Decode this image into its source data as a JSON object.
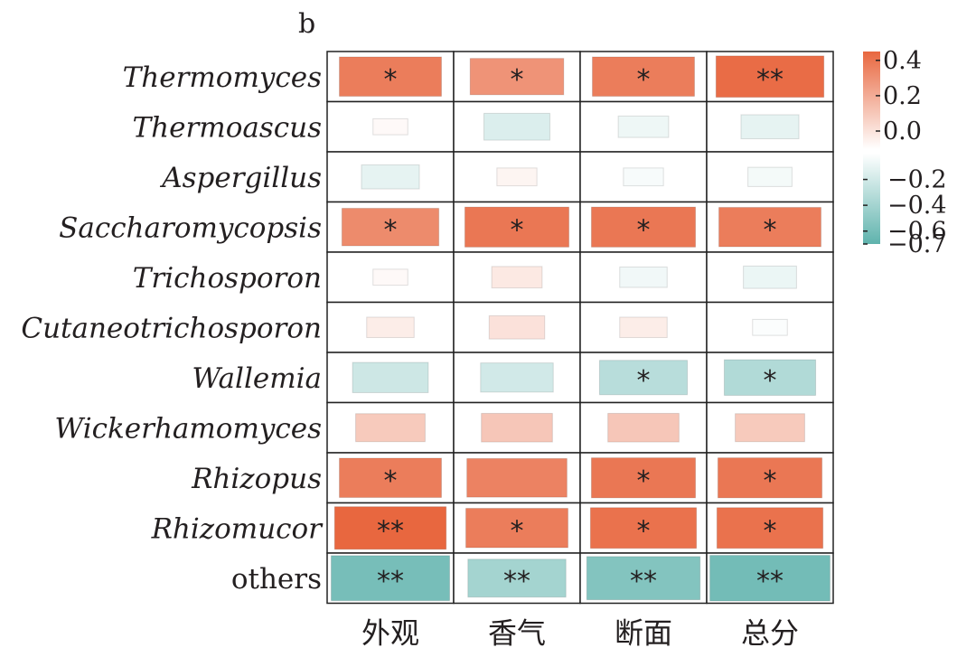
{
  "chart_data": {
    "type": "heatmap",
    "panel_label": "b",
    "rows": [
      "Thermomyces",
      "Thermoascus",
      "Aspergillus",
      "Saccharomycopsis",
      "Trichosporon",
      "Cutaneotrichosporon",
      "Wallemia",
      "Wickerhamomyces",
      "Rhizopus",
      "Rhizomucor",
      "others"
    ],
    "italic_rows": [
      true,
      true,
      true,
      true,
      true,
      true,
      true,
      true,
      true,
      true,
      false
    ],
    "columns": [
      "外观",
      "香气",
      "断面",
      "总分"
    ],
    "values": [
      [
        0.4,
        0.32,
        0.4,
        0.46
      ],
      [
        0.01,
        -0.12,
        -0.05,
        -0.08
      ],
      [
        -0.08,
        0.02,
        -0.02,
        -0.03
      ],
      [
        0.35,
        0.42,
        0.42,
        0.4
      ],
      [
        0.01,
        0.05,
        -0.04,
        -0.06
      ],
      [
        0.04,
        0.07,
        0.04,
        -0.01
      ],
      [
        -0.18,
        -0.16,
        -0.27,
        -0.3
      ],
      [
        0.14,
        0.15,
        0.15,
        0.14
      ],
      [
        0.4,
        0.38,
        0.42,
        0.42
      ],
      [
        0.5,
        0.4,
        0.44,
        0.44
      ],
      [
        -0.58,
        -0.36,
        -0.52,
        -0.6
      ]
    ],
    "significance": [
      [
        "*",
        "*",
        "*",
        "**"
      ],
      [
        "",
        "",
        "",
        ""
      ],
      [
        "",
        "",
        "",
        ""
      ],
      [
        "*",
        "*",
        "*",
        "*"
      ],
      [
        "",
        "",
        "",
        ""
      ],
      [
        "",
        "",
        "",
        ""
      ],
      [
        "",
        "",
        "*",
        "*"
      ],
      [
        "",
        "",
        "",
        ""
      ],
      [
        "*",
        "",
        "*",
        "*"
      ],
      [
        "**",
        "*",
        "*",
        "*"
      ],
      [
        "**",
        "**",
        "**",
        "**"
      ]
    ],
    "colorbar": {
      "range": [
        -0.7,
        0.45
      ],
      "ticks_positive": [
        "0.4",
        "0.2",
        "0.0"
      ],
      "ticks_negative": [
        "−0.2",
        "−0.4",
        "−0.6",
        "−0.7"
      ],
      "tick_values_positive": [
        0.4,
        0.2,
        0.0
      ],
      "tick_values_negative": [
        -0.2,
        -0.4,
        -0.6,
        -0.7
      ],
      "positive_color": "#e8673f",
      "negative_color": "#5fb3ad",
      "neutral_color": "#ffffff"
    }
  }
}
